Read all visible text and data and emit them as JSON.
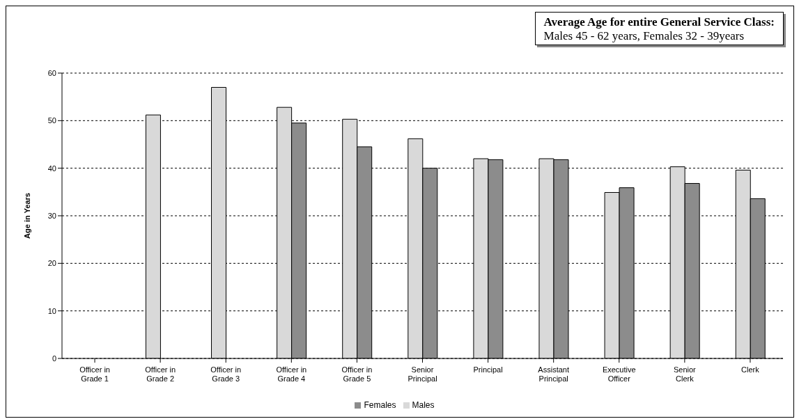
{
  "chart_data": {
    "type": "bar",
    "title": "Average Age for entire General Service Class:",
    "subtitle": "Males 45  - 62 years, Females 32 - 39years",
    "ylabel": "Age in Years",
    "categories": [
      "Officer in Grade 1",
      "Officer in Grade 2",
      "Officer in Grade 3",
      "Officer in Grade 4",
      "Officer in Grade 5",
      "Senior Principal",
      "Principal",
      "Assistant Principal",
      "Executive Officer",
      "Senior Clerk",
      "Clerk"
    ],
    "series": [
      {
        "name": "Males",
        "color": "#d9d9d9",
        "values": [
          null,
          51.2,
          57.0,
          52.8,
          50.3,
          46.2,
          42.0,
          42.0,
          34.9,
          40.3,
          39.6
        ]
      },
      {
        "name": "Females",
        "color": "#8c8c8c",
        "values": [
          null,
          null,
          null,
          49.5,
          44.5,
          40.0,
          41.8,
          41.8,
          35.9,
          36.8,
          33.6
        ]
      }
    ],
    "ylim": [
      0,
      60
    ],
    "yticks": [
      0,
      10,
      20,
      30,
      40,
      50,
      60
    ],
    "grid": "y",
    "legend": "bottom"
  }
}
